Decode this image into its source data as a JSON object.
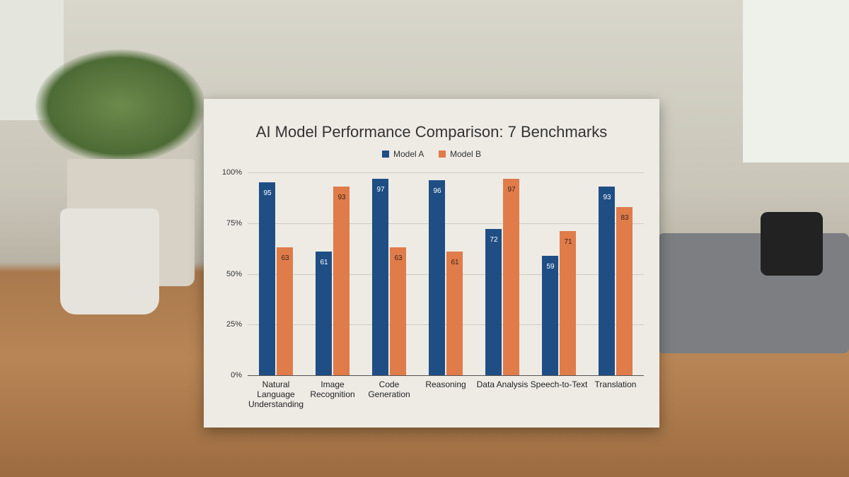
{
  "chart_data": {
    "type": "bar",
    "title": "AI Model Performance Comparison: 7 Benchmarks",
    "categories": [
      "Natural Language Understanding",
      "Image Recognition",
      "Code Generation",
      "Reasoning",
      "Data Analysis",
      "Speech-to-Text",
      "Translation"
    ],
    "series": [
      {
        "name": "Model A",
        "color": "#1f4e85",
        "values": [
          95,
          61,
          97,
          96,
          72,
          59,
          93
        ]
      },
      {
        "name": "Model B",
        "color": "#e07b4a",
        "values": [
          63,
          93,
          63,
          61,
          97,
          71,
          83
        ]
      }
    ],
    "ylim": [
      0,
      100
    ],
    "yticks": [
      {
        "value": 0,
        "label": "0%"
      },
      {
        "value": 25,
        "label": "25%"
      },
      {
        "value": 50,
        "label": "50%"
      },
      {
        "value": 75,
        "label": "75%"
      },
      {
        "value": 100,
        "label": "100%"
      }
    ],
    "grid": true,
    "legend": "top"
  }
}
